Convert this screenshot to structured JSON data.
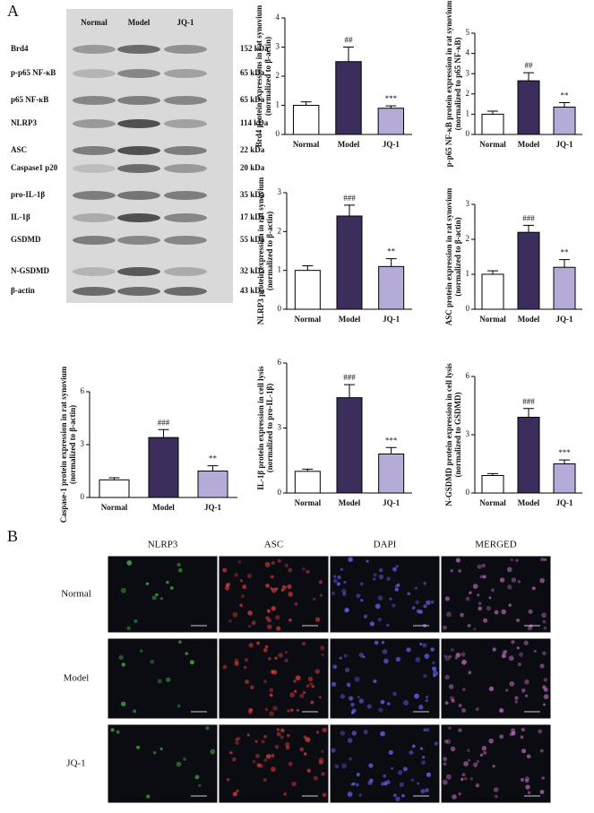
{
  "panel_labels": [
    "A",
    "B"
  ],
  "blot": {
    "lanes": [
      "Normal",
      "Model",
      "JQ-1"
    ],
    "rows": [
      {
        "protein": "Brd4",
        "size": "152 kDa"
      },
      {
        "protein": "p-p65 NF-κB",
        "size": "65 kDa"
      },
      {
        "protein": "p65 NF-κB",
        "size": "65 kDa"
      },
      {
        "protein": "NLRP3",
        "size": "114 kDa"
      },
      {
        "protein": "ASC",
        "size": "22 kDa"
      },
      {
        "protein": "Caspase1 p20",
        "size": "20 kDa"
      },
      {
        "protein": "pro-IL-1β",
        "size": "35 kDa"
      },
      {
        "protein": "IL-1β",
        "size": "17 kDa"
      },
      {
        "protein": "GSDMD",
        "size": "55 kDa"
      },
      {
        "protein": "N-GSDMD",
        "size": "32 kDa"
      },
      {
        "protein": "β-actin",
        "size": "43 kDa"
      }
    ]
  },
  "chart_data": [
    {
      "type": "bar",
      "ylabel": [
        "Brd4 protein expressions in rat synovium",
        "(normalized to β-actin)"
      ],
      "categories": [
        "Normal",
        "Model",
        "JQ-1"
      ],
      "values": [
        1,
        2.5,
        0.9
      ],
      "errors": [
        0.12,
        0.5,
        0.08
      ],
      "annotations": [
        null,
        "##",
        "***"
      ],
      "colors": [
        "#ffffff",
        "#3b2e5c",
        "#b5abd9"
      ],
      "ylim": [
        0,
        4
      ],
      "yticks": [
        0,
        1,
        2,
        3,
        4
      ]
    },
    {
      "type": "bar",
      "ylabel": [
        "p-p65 NF-κB protein expression in rat synovium",
        "(normalized to p65 NF-κB)"
      ],
      "categories": [
        "Normal",
        "Model",
        "JQ-1"
      ],
      "values": [
        1,
        2.65,
        1.35
      ],
      "errors": [
        0.15,
        0.4,
        0.22
      ],
      "annotations": [
        null,
        "##",
        "**"
      ],
      "colors": [
        "#ffffff",
        "#3b2e5c",
        "#b5abd9"
      ],
      "ylim": [
        0,
        5
      ],
      "yticks": [
        0,
        1,
        2,
        3,
        4,
        5
      ]
    },
    {
      "type": "bar",
      "ylabel": [
        "NLRP3 protein expression in rat synovium",
        "(normalized to β-actin)"
      ],
      "categories": [
        "Normal",
        "Model",
        "JQ-1"
      ],
      "values": [
        1,
        2.4,
        1.1
      ],
      "errors": [
        0.12,
        0.28,
        0.2
      ],
      "annotations": [
        null,
        "###",
        "**"
      ],
      "colors": [
        "#ffffff",
        "#3b2e5c",
        "#b5abd9"
      ],
      "ylim": [
        0,
        3
      ],
      "yticks": [
        0,
        1,
        2,
        3
      ]
    },
    {
      "type": "bar",
      "ylabel": [
        "ASC protein expression in rat synovium",
        "(normalized to β-actin)"
      ],
      "categories": [
        "Normal",
        "Model",
        "JQ-1"
      ],
      "values": [
        1,
        2.2,
        1.2
      ],
      "errors": [
        0.1,
        0.2,
        0.22
      ],
      "annotations": [
        null,
        "###",
        "**"
      ],
      "colors": [
        "#ffffff",
        "#3b2e5c",
        "#b5abd9"
      ],
      "ylim": [
        0,
        3
      ],
      "yticks": [
        0,
        1,
        2,
        3
      ]
    },
    {
      "type": "bar",
      "ylabel": [
        "Caspase-1 protein expression in rat synovium",
        "(normalized to β-actin)"
      ],
      "categories": [
        "Normal",
        "Model",
        "JQ-1"
      ],
      "values": [
        1,
        3.4,
        1.5
      ],
      "errors": [
        0.12,
        0.45,
        0.3
      ],
      "annotations": [
        null,
        "###",
        "**"
      ],
      "colors": [
        "#ffffff",
        "#3b2e5c",
        "#b5abd9"
      ],
      "ylim": [
        0,
        6
      ],
      "yticks": [
        0,
        3,
        6
      ]
    },
    {
      "type": "bar",
      "ylabel": [
        "IL-1β protein expression in cell lysis",
        "(normalized to pro-IL-1β)"
      ],
      "categories": [
        "Normal",
        "Model",
        "JQ-1"
      ],
      "values": [
        1,
        4.4,
        1.8
      ],
      "errors": [
        0.1,
        0.6,
        0.3
      ],
      "annotations": [
        null,
        "###",
        "***"
      ],
      "colors": [
        "#ffffff",
        "#3b2e5c",
        "#b5abd9"
      ],
      "ylim": [
        0,
        6
      ],
      "yticks": [
        0,
        3,
        6
      ]
    },
    {
      "type": "bar",
      "ylabel": [
        "N-GSDMD protein expression in cell lysis",
        "(normalized to GSDMD)"
      ],
      "categories": [
        "Normal",
        "Model",
        "JQ-1"
      ],
      "values": [
        0.9,
        3.9,
        1.5
      ],
      "errors": [
        0.1,
        0.45,
        0.2
      ],
      "annotations": [
        null,
        "###",
        "***"
      ],
      "colors": [
        "#ffffff",
        "#3b2e5c",
        "#b5abd9"
      ],
      "ylim": [
        0,
        6
      ],
      "yticks": [
        0,
        3,
        6
      ]
    }
  ],
  "immunofluorescence": {
    "columns": [
      "NLRP3",
      "ASC",
      "DAPI",
      "MERGED"
    ],
    "rows": [
      "Normal",
      "Model",
      "JQ-1"
    ]
  }
}
